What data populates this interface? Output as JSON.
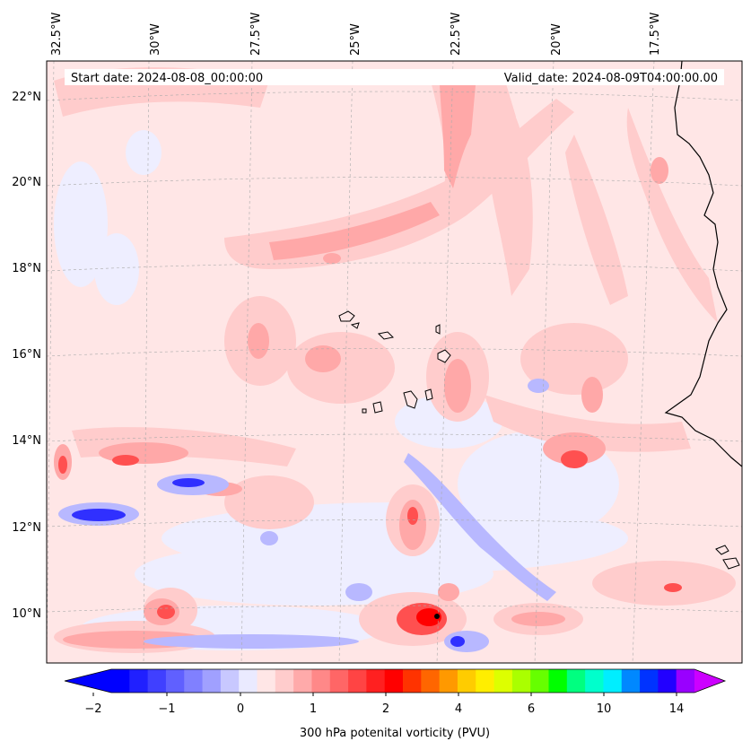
{
  "header": {
    "start_date": "Start date: 2024-08-08_00:00:00",
    "valid_date": "Valid_date: 2024-08-09T04:00:00.00"
  },
  "map": {
    "longitude_labels": [
      "32.5°W",
      "30°W",
      "27.5°W",
      "25°W",
      "22.5°W",
      "20°W",
      "17.5°W"
    ],
    "latitude_labels": [
      "22°N",
      "20°N",
      "18°N",
      "16°N",
      "14°N",
      "12°N",
      "10°N"
    ],
    "colors": {
      "background_field": "#ffe6e6",
      "light_pink": "#ffcccc",
      "pink": "#ffa8a8",
      "red": "#ff5050",
      "deep_red": "#ff0000",
      "light_blue": "#eeeeff",
      "blue": "#b8b8ff",
      "deep_blue": "#3030ff",
      "coastline": "#000000"
    }
  },
  "colorbar": {
    "ticks": [
      "−2",
      "−1",
      "0",
      "1",
      "2",
      "4",
      "6",
      "10",
      "14"
    ],
    "label": "300 hPa potenital vorticity (PVU)",
    "segment_colors": [
      "#0000ff",
      "#2020ff",
      "#4040ff",
      "#6060ff",
      "#8080ff",
      "#a0a0ff",
      "#c8c8ff",
      "#eaeaff",
      "#ffe6e6",
      "#ffcccc",
      "#ffaaaa",
      "#ff8888",
      "#ff6666",
      "#ff4444",
      "#ff2020",
      "#ff0000",
      "#ff3300",
      "#ff6600",
      "#ff9900",
      "#ffcc00",
      "#ffee00",
      "#ddff00",
      "#aaff00",
      "#66ff00",
      "#00ff00",
      "#00ff80",
      "#00ffcc",
      "#00eeff",
      "#0088ff",
      "#0033ff",
      "#2200ff",
      "#9900ff"
    ],
    "under_color": "#0000ff",
    "over_color": "#cc00ff"
  }
}
